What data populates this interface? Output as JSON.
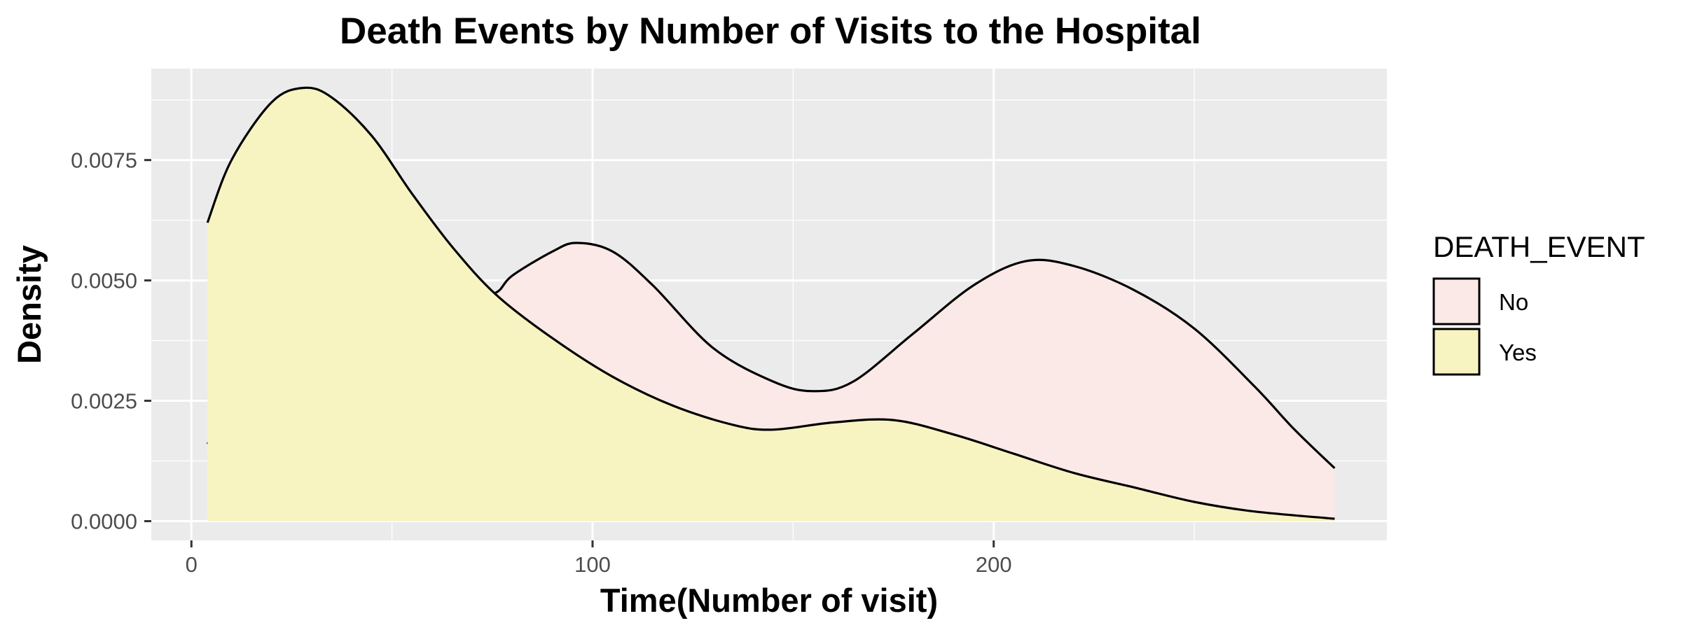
{
  "chart_data": {
    "type": "area",
    "title": "Death Events by Number of Visits to the Hospital",
    "xlabel": "Time(Number of visit)",
    "ylabel": "Density",
    "xlim": [
      -10,
      298
    ],
    "ylim": [
      -0.0004,
      0.0094
    ],
    "x_ticks": [
      0,
      100,
      200
    ],
    "x_tick_labels": [
      "0",
      "100",
      "200"
    ],
    "y_ticks": [
      0,
      0.0025,
      0.005,
      0.0075
    ],
    "y_tick_labels": [
      "0.0000",
      "0.0025",
      "0.0050",
      "0.0075"
    ],
    "grid": true,
    "legend": {
      "title": "DEATH_EVENT",
      "placement": "right",
      "entries": [
        "No",
        "Yes"
      ]
    },
    "series": [
      {
        "name": "No",
        "fill": "#fbe9e7",
        "stroke": "#000000",
        "x": [
          4,
          10,
          20,
          30,
          40,
          50,
          60,
          70,
          76,
          80,
          90,
          96,
          105,
          115,
          130,
          145,
          155,
          165,
          180,
          195,
          208,
          220,
          235,
          250,
          265,
          275,
          285
        ],
        "y": [
          0.0016,
          0.0024,
          0.0035,
          0.0042,
          0.0046,
          0.0047,
          0.0047,
          0.0047,
          0.00475,
          0.0051,
          0.0056,
          0.00578,
          0.0056,
          0.0049,
          0.0036,
          0.0029,
          0.0027,
          0.0029,
          0.0039,
          0.0049,
          0.0054,
          0.0053,
          0.0048,
          0.004,
          0.0028,
          0.0019,
          0.0011
        ]
      },
      {
        "name": "Yes",
        "fill": "#f7f4c1",
        "stroke": "#000000",
        "x": [
          4,
          10,
          20,
          28,
          35,
          45,
          55,
          65,
          76,
          90,
          105,
          120,
          135,
          145,
          160,
          175,
          190,
          205,
          220,
          235,
          250,
          265,
          285
        ],
        "y": [
          0.0062,
          0.0075,
          0.0087,
          0.009,
          0.0088,
          0.008,
          0.0068,
          0.0057,
          0.0047,
          0.0038,
          0.003,
          0.0024,
          0.002,
          0.0019,
          0.00205,
          0.0021,
          0.0018,
          0.0014,
          0.001,
          0.0007,
          0.0004,
          0.0002,
          5e-05
        ]
      }
    ]
  }
}
